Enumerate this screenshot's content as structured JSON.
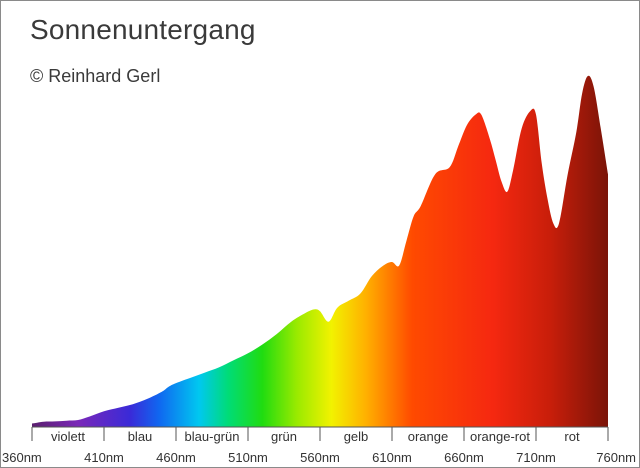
{
  "title": "Sonnenuntergang",
  "subtitle": "© Reinhard Gerl",
  "chart_data": {
    "type": "area",
    "title": "Sonnenuntergang",
    "xlabel": "",
    "ylabel": "",
    "xlim": [
      360,
      760
    ],
    "ylim": [
      0,
      1
    ],
    "grid": false,
    "legend": "none",
    "x_ticks": [
      "360nm",
      "410nm",
      "460nm",
      "510nm",
      "560nm",
      "610nm",
      "660nm",
      "710nm",
      "760nm"
    ],
    "bands": [
      {
        "label": "violett",
        "from": 360,
        "to": 410
      },
      {
        "label": "blau",
        "from": 410,
        "to": 460
      },
      {
        "label": "blau-grün",
        "from": 460,
        "to": 510
      },
      {
        "label": "grün",
        "from": 510,
        "to": 560
      },
      {
        "label": "gelb",
        "from": 560,
        "to": 610
      },
      {
        "label": "orange",
        "from": 610,
        "to": 660
      },
      {
        "label": "orange-rot",
        "from": 660,
        "to": 710
      },
      {
        "label": "rot",
        "from": 710,
        "to": 760
      }
    ],
    "x": [
      360,
      368,
      376,
      384,
      392,
      400,
      410,
      420,
      430,
      440,
      450,
      455,
      460,
      470,
      480,
      490,
      500,
      510,
      520,
      530,
      540,
      550,
      556,
      560,
      566,
      572,
      580,
      588,
      596,
      604,
      610,
      615,
      620,
      625,
      630,
      640,
      650,
      656,
      662,
      668,
      672,
      678,
      682,
      686,
      690,
      694,
      700,
      706,
      710,
      714,
      718,
      722,
      726,
      732,
      738,
      742,
      746,
      750,
      755,
      760
    ],
    "values": [
      0.01,
      0.015,
      0.016,
      0.018,
      0.02,
      0.03,
      0.045,
      0.055,
      0.065,
      0.08,
      0.1,
      0.115,
      0.125,
      0.14,
      0.155,
      0.17,
      0.19,
      0.21,
      0.235,
      0.265,
      0.3,
      0.325,
      0.335,
      0.33,
      0.3,
      0.34,
      0.36,
      0.38,
      0.43,
      0.46,
      0.47,
      0.46,
      0.53,
      0.6,
      0.63,
      0.72,
      0.74,
      0.8,
      0.86,
      0.89,
      0.89,
      0.82,
      0.76,
      0.7,
      0.67,
      0.73,
      0.85,
      0.9,
      0.89,
      0.75,
      0.65,
      0.58,
      0.58,
      0.72,
      0.84,
      0.95,
      1.0,
      0.97,
      0.85,
      0.72
    ]
  }
}
